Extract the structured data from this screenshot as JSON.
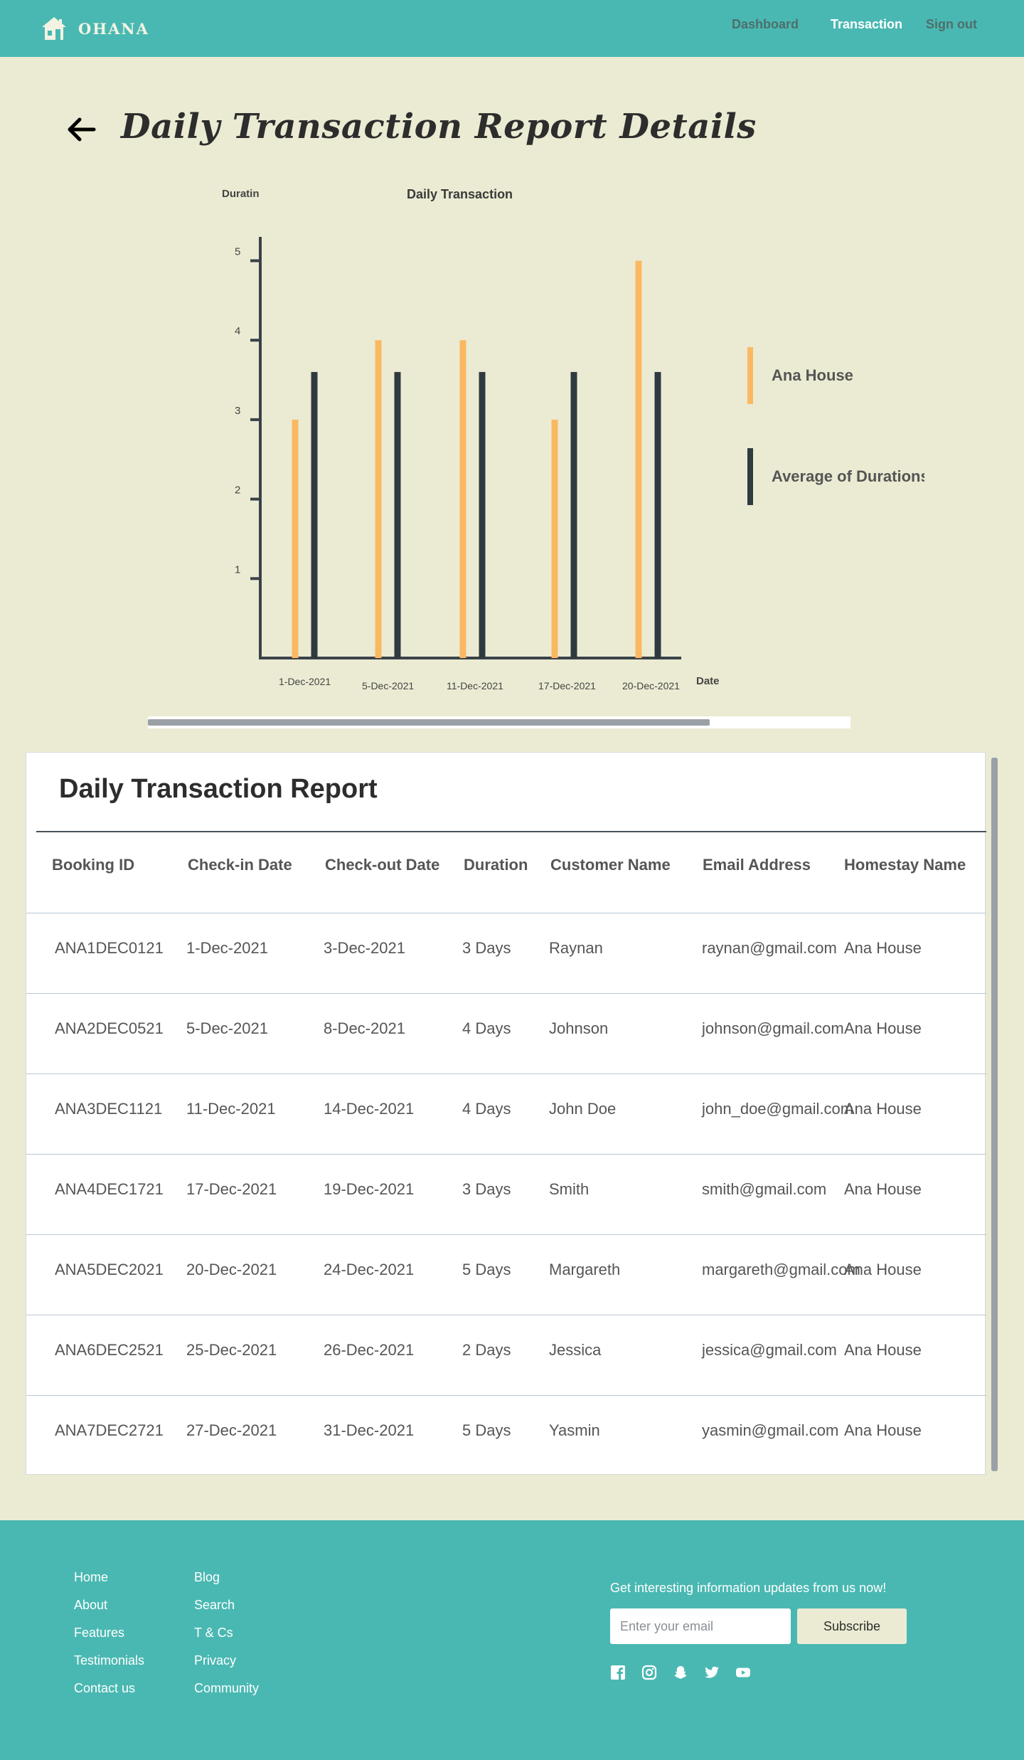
{
  "nav": {
    "brand": "OHANA",
    "brand_icon": "house-icon",
    "links": [
      "Dashboard",
      "Transaction",
      "Sign out"
    ],
    "active": "Transaction",
    "bg_color": "#4ab8b2"
  },
  "header": {
    "back_icon": "arrow-left-icon",
    "title": "Daily Transaction Report Details"
  },
  "chart_data": {
    "type": "bar",
    "title": "Daily Transaction",
    "ylabel": "Duratin",
    "xlabel": "Date",
    "categories": [
      "1-Dec-2021",
      "5-Dec-2021",
      "11-Dec-2021",
      "17-Dec-2021",
      "20-Dec-2021"
    ],
    "yticks": [
      1,
      2,
      3,
      4,
      5
    ],
    "ylim": [
      0,
      5.3
    ],
    "grid": false,
    "legend_position": "right",
    "series": [
      {
        "name": "Ana House",
        "color": "#fbb862",
        "values": [
          3,
          4,
          4,
          3,
          5
        ]
      },
      {
        "name": "Average of Durations",
        "color": "#2f3a40",
        "values": [
          3.6,
          3.6,
          3.6,
          3.6,
          3.6
        ]
      }
    ]
  },
  "chart_scroll": {
    "position_fraction": 0.8
  },
  "table": {
    "title": "Daily Transaction Report",
    "columns": [
      "Booking ID",
      "Check-in Date",
      "Check-out Date",
      "Duration",
      "Customer Name",
      "Email Address",
      "Homestay Name"
    ],
    "rows": [
      [
        "ANA1DEC0121",
        "1-Dec-2021",
        "3-Dec-2021",
        "3 Days",
        "Raynan",
        "raynan@gmail.com",
        "Ana House"
      ],
      [
        "ANA2DEC0521",
        "5-Dec-2021",
        "8-Dec-2021",
        "4 Days",
        "Johnson",
        "johnson@gmail.com",
        "Ana House"
      ],
      [
        "ANA3DEC1121",
        "11-Dec-2021",
        "14-Dec-2021",
        "4 Days",
        "John Doe",
        "john_doe@gmail.com",
        "Ana House"
      ],
      [
        "ANA4DEC1721",
        "17-Dec-2021",
        "19-Dec-2021",
        "3 Days",
        "Smith",
        "smith@gmail.com",
        "Ana House"
      ],
      [
        "ANA5DEC2021",
        "20-Dec-2021",
        "24-Dec-2021",
        "5 Days",
        "Margareth",
        "margareth@gmail.com",
        "Ana House"
      ],
      [
        "ANA6DEC2521",
        "25-Dec-2021",
        "26-Dec-2021",
        "2 Days",
        "Jessica",
        "jessica@gmail.com",
        "Ana House"
      ],
      [
        "ANA7DEC2721",
        "27-Dec-2021",
        "31-Dec-2021",
        "5 Days",
        "Yasmin",
        "yasmin@gmail.com",
        "Ana House"
      ]
    ]
  },
  "footer": {
    "col1": [
      "Home",
      "About",
      "Features",
      "Testimonials",
      "Contact us"
    ],
    "col2": [
      "Blog",
      "Search",
      "T & Cs",
      "Privacy",
      "Community"
    ],
    "tagline": "Get interesting information updates from us now!",
    "email_placeholder": "Enter your email",
    "subscribe_label": "Subscribe",
    "social_icons": [
      "facebook-icon",
      "instagram-icon",
      "snapchat-icon",
      "twitter-icon",
      "youtube-icon"
    ]
  }
}
